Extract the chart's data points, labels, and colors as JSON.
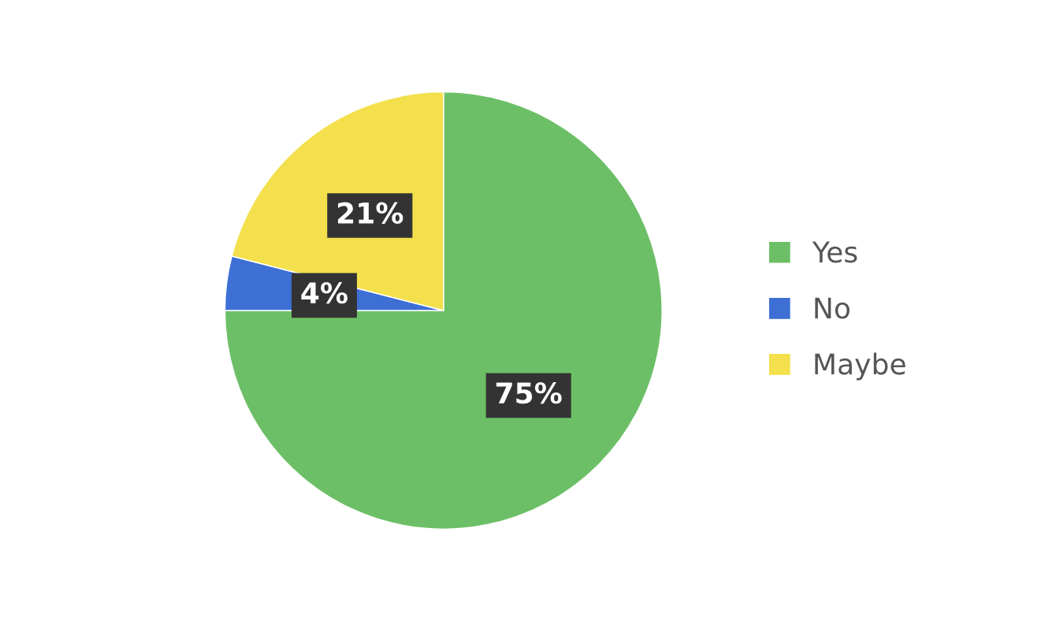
{
  "chart_data": {
    "type": "pie",
    "categories": [
      "Yes",
      "No",
      "Maybe"
    ],
    "values": [
      75,
      4,
      21
    ],
    "colors": [
      "#6cbf66",
      "#3d6fd4",
      "#f3e04c"
    ],
    "value_labels": [
      "75%",
      "4%",
      "21%"
    ],
    "legend": "right"
  }
}
